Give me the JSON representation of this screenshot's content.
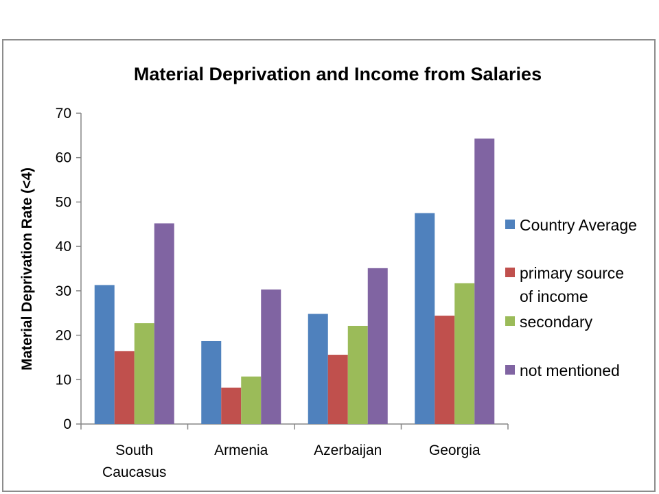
{
  "chart_data": {
    "type": "bar",
    "title": "Material Deprivation and Income from Salaries",
    "xlabel": "",
    "ylabel": "Material Deprivation Rate (<4)",
    "ylim": [
      0,
      70
    ],
    "yticks": [
      "0",
      "10",
      "20",
      "30",
      "40",
      "50",
      "60",
      "70"
    ],
    "categories": [
      [
        "South",
        "Caucasus"
      ],
      [
        "Armenia"
      ],
      [
        "Azerbaijan"
      ],
      [
        "Georgia"
      ]
    ],
    "series": [
      {
        "name": [
          "Country Average"
        ],
        "color": "#4f81bd",
        "values": [
          31.3,
          18.7,
          24.8,
          47.5
        ]
      },
      {
        "name": [
          "primary source",
          "of income"
        ],
        "color": "#c0504d",
        "values": [
          16.4,
          8.2,
          15.6,
          24.4
        ]
      },
      {
        "name": [
          "secondary"
        ],
        "color": "#9bbb59",
        "values": [
          22.7,
          10.7,
          22.1,
          31.7
        ]
      },
      {
        "name": [
          "not mentioned"
        ],
        "color": "#8064a2",
        "values": [
          45.2,
          30.3,
          35.1,
          64.3
        ]
      }
    ],
    "grid": false,
    "legend": "right"
  }
}
